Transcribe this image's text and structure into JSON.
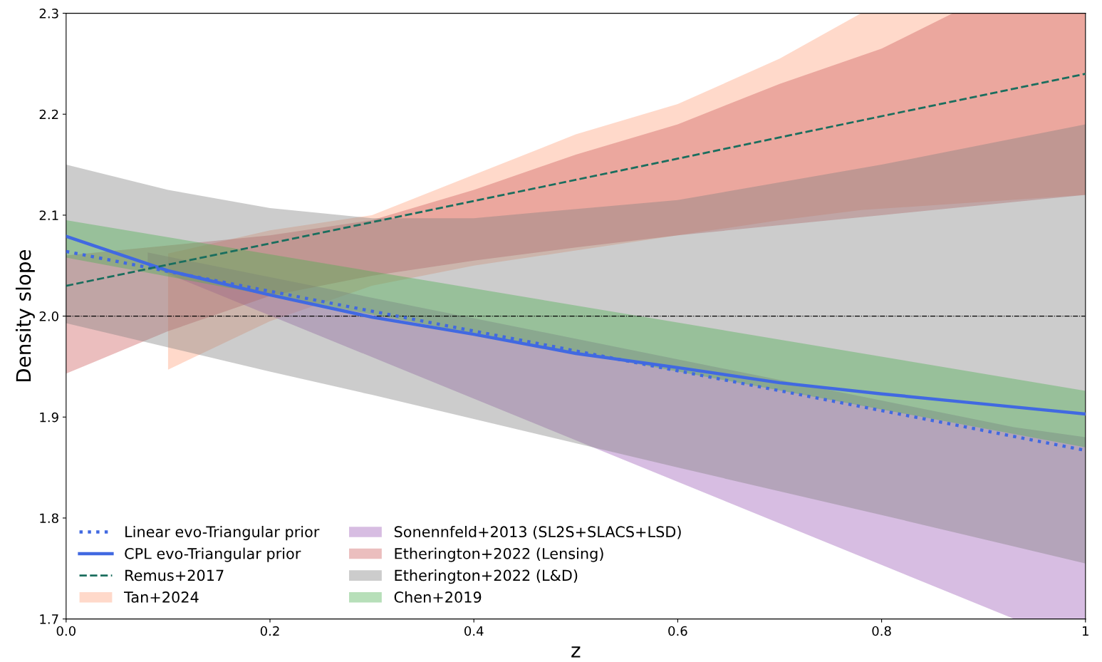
{
  "chart_data": {
    "type": "line",
    "xlabel": "z",
    "ylabel": "Density slope",
    "xlim": [
      0.0,
      1
    ],
    "ylim": [
      1.7,
      2.3
    ],
    "xticks": [
      {
        "value": 0,
        "label": "0.0"
      },
      0.2,
      0.4,
      0.6,
      0.8,
      1
    ],
    "yticks": [
      1.7,
      1.8,
      1.9,
      {
        "value": 2,
        "label": "2.0"
      },
      2.1,
      2.2,
      2.3
    ],
    "grid": false,
    "legend": "bottom left",
    "ref_lines": [
      {
        "axis": "y",
        "value": 2.0,
        "color": "#000000",
        "line_style": "dashdot"
      }
    ],
    "series": [
      {
        "name": "Linear evo-Triangular prior",
        "color": "#4169e1",
        "line_style": "dotted",
        "x": [
          0,
          1
        ],
        "values": [
          2.064,
          1.867
        ]
      },
      {
        "name": "CPL evo-Triangular prior",
        "color": "#4169e1",
        "line_style": "solid",
        "x": [
          0,
          0.1,
          0.2,
          0.3,
          0.4,
          0.5,
          0.6,
          0.7,
          0.8,
          0.9,
          1
        ],
        "values": [
          2.079,
          2.045,
          2.021,
          1.999,
          1.982,
          1.963,
          1.949,
          1.934,
          1.923,
          1.913,
          1.903
        ]
      },
      {
        "name": "Remus+2017",
        "color": "#1a6e5e",
        "line_style": "dashed",
        "x": [
          0,
          1
        ],
        "values": [
          2.03,
          2.24
        ]
      },
      {
        "name": "Tan+2024",
        "type": "area",
        "color": "#ffa07a",
        "x": [
          0.1,
          0.2,
          0.3,
          0.4,
          0.5,
          0.6,
          0.7,
          0.78,
          1
        ],
        "values": [
          null,
          null,
          null,
          null,
          null,
          null,
          null,
          null,
          null
        ],
        "upper": [
          2.062,
          2.085,
          2.1,
          2.14,
          2.18,
          2.21,
          2.255,
          2.3,
          2.3
        ],
        "lower": [
          1.947,
          1.995,
          2.03,
          2.05,
          2.065,
          2.08,
          2.095,
          2.105,
          2.12
        ]
      },
      {
        "name": "Sonennfeld+2013 (SL2S+SLACS+LSD)",
        "type": "area",
        "color": "#9b59b6",
        "x": [
          0.08,
          0.93,
          1
        ],
        "values": [
          null,
          null,
          null
        ],
        "upper": [
          2.063,
          1.89,
          1.88
        ],
        "lower": [
          2.05,
          1.7,
          1.7
        ]
      },
      {
        "name": "Etherington+2022 (Lensing)",
        "type": "area",
        "color": "#cd5c5c",
        "x": [
          0,
          0.1,
          0.2,
          0.3,
          0.4,
          0.5,
          0.6,
          0.7,
          0.8,
          0.87,
          1
        ],
        "values": [
          null,
          null,
          null,
          null,
          null,
          null,
          null,
          null,
          null,
          null,
          null
        ],
        "upper": [
          2.06,
          2.07,
          2.08,
          2.095,
          2.125,
          2.16,
          2.19,
          2.23,
          2.265,
          2.3,
          2.3
        ],
        "lower": [
          1.943,
          1.985,
          2.02,
          2.04,
          2.055,
          2.068,
          2.08,
          2.09,
          2.1,
          2.107,
          2.12
        ]
      },
      {
        "name": "Etherington+2022 (L&D)",
        "type": "area",
        "color": "#808080",
        "x": [
          0,
          0.1,
          0.2,
          0.3,
          0.4,
          0.6,
          0.8,
          1
        ],
        "values": [
          null,
          null,
          null,
          null,
          null,
          null,
          null,
          null
        ],
        "upper": [
          2.15,
          2.125,
          2.107,
          2.097,
          2.097,
          2.115,
          2.15,
          2.19
        ],
        "lower": [
          1.993,
          1.969,
          1.945,
          1.922,
          1.898,
          1.85,
          1.803,
          1.755
        ]
      },
      {
        "name": "Chen+2019",
        "type": "area",
        "color": "#4caf50",
        "x": [
          0,
          1
        ],
        "values": [
          null,
          null
        ],
        "upper": [
          2.095,
          1.926
        ],
        "lower": [
          2.058,
          1.87
        ]
      }
    ]
  }
}
